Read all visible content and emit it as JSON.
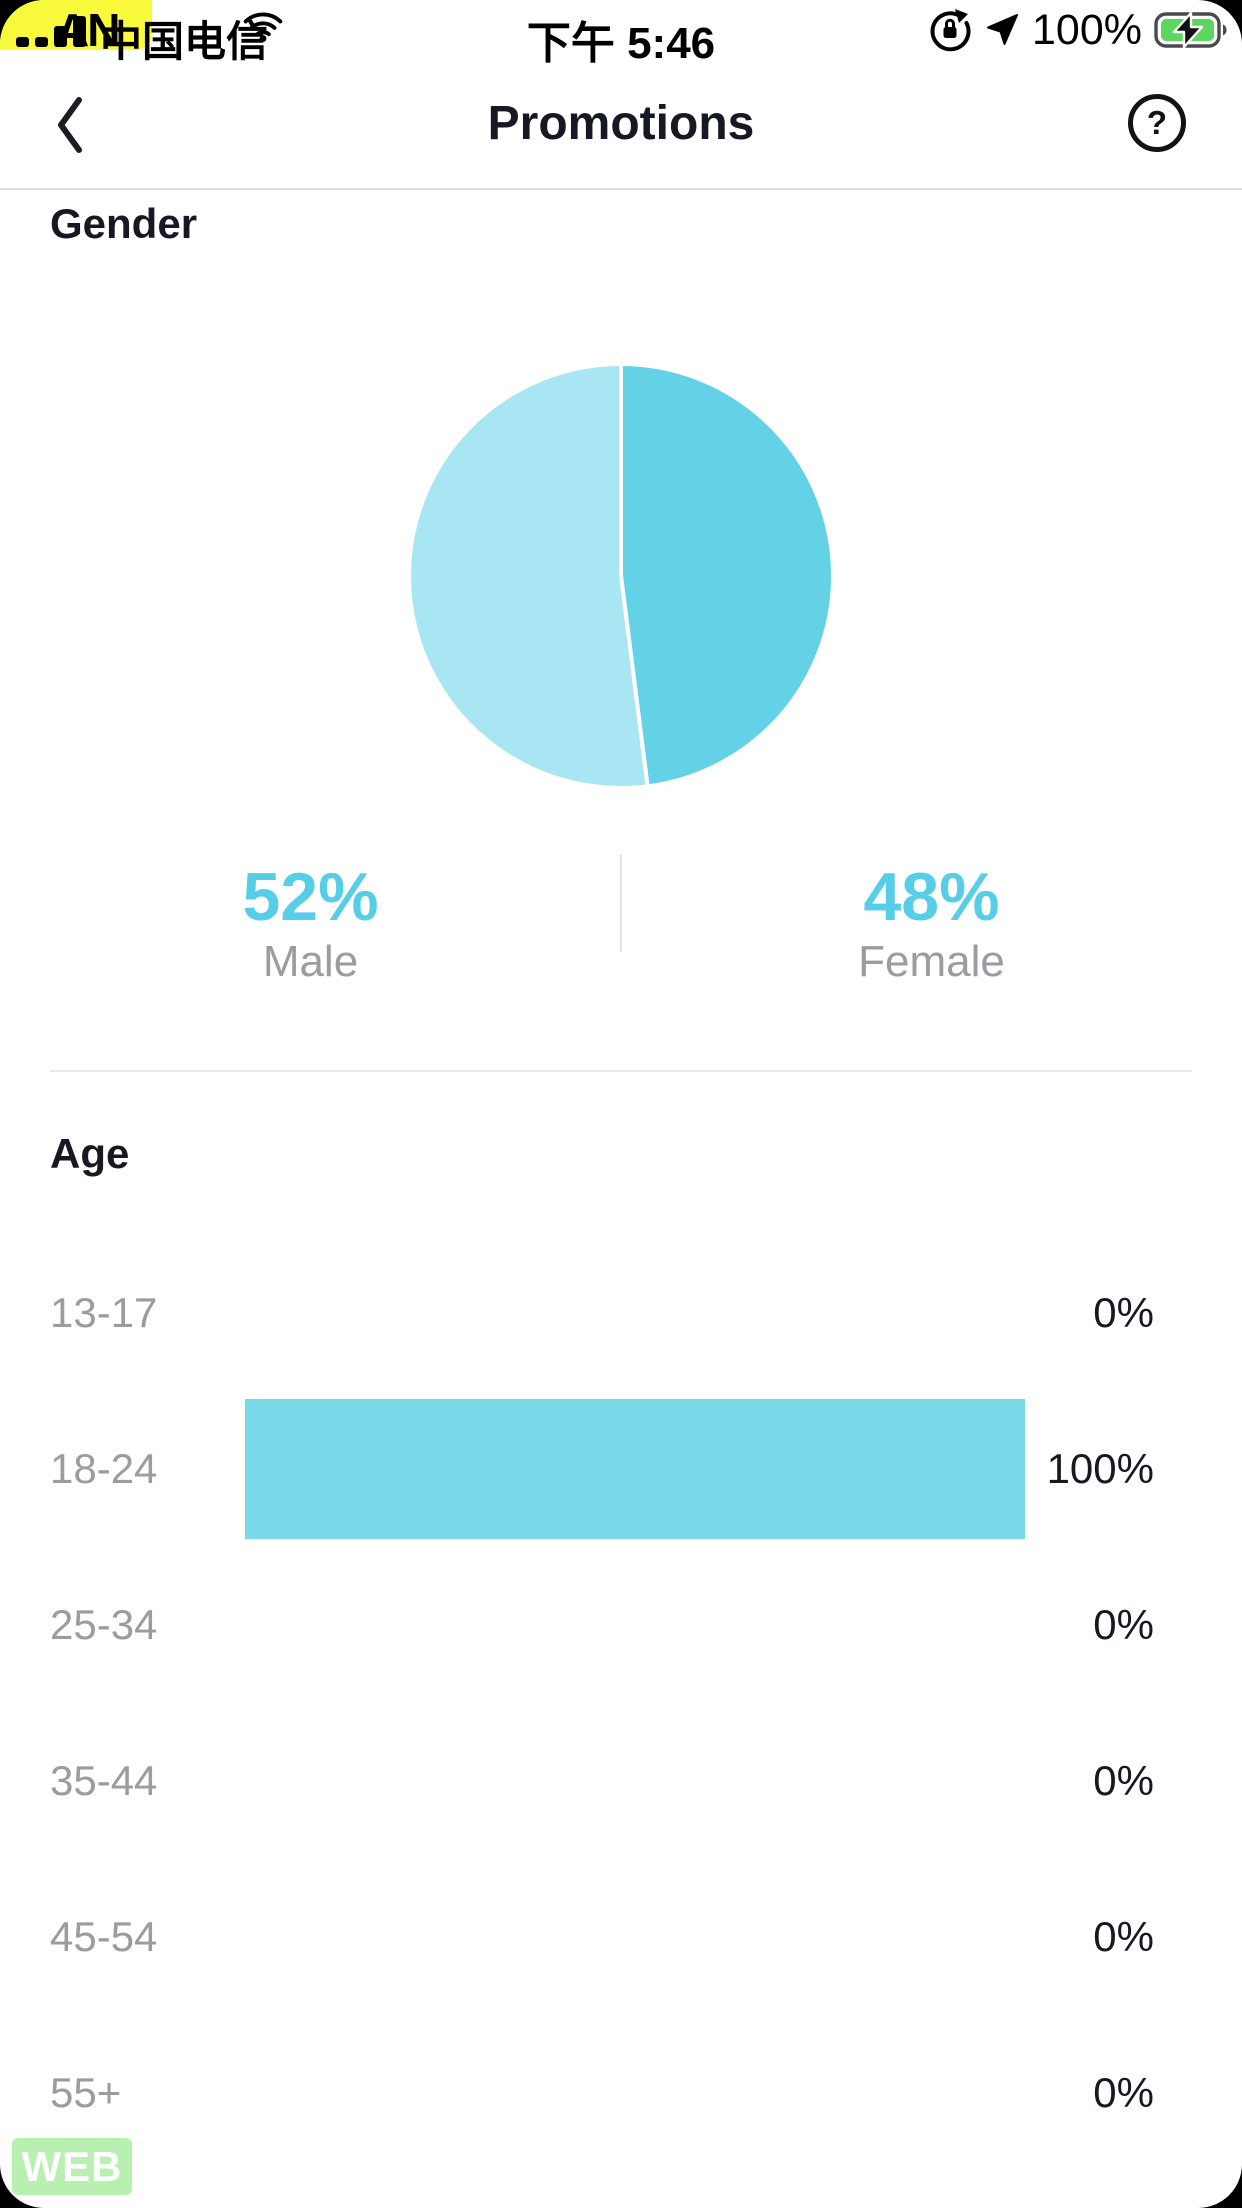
{
  "status_bar": {
    "overlay_text": "AN",
    "carrier": "中国电信",
    "time": "下午 5:46",
    "battery_percent": "100%",
    "icons": {
      "signal": "signal-bars-icon",
      "wifi": "wifi-icon",
      "orientation_lock": "orientation-lock-icon",
      "location": "location-arrow-icon",
      "battery": "battery-charging-icon"
    },
    "colors": {
      "highlight_yellow": "#FAFA3C",
      "battery_green": "#5BD75F"
    }
  },
  "header": {
    "title": "Promotions",
    "back_icon": "chevron-left-icon",
    "help_icon": "question-mark-circle-icon"
  },
  "chart_data": [
    {
      "type": "pie",
      "title": "Gender",
      "start_angle_deg": 0,
      "direction": "clockwise",
      "divider_color": "#FFFFFF",
      "segments": [
        {
          "label": "Female",
          "value": 48,
          "color": "#64D2E6"
        },
        {
          "label": "Male",
          "value": 52,
          "color": "#A7E6F2"
        }
      ],
      "legend": [
        {
          "value_label": "52%",
          "label": "Male"
        },
        {
          "value_label": "48%",
          "label": "Female"
        }
      ],
      "legend_position": "bottom"
    },
    {
      "type": "bar",
      "orientation": "horizontal",
      "title": "Age",
      "categories": [
        "13-17",
        "18-24",
        "25-34",
        "35-44",
        "45-54",
        "55+"
      ],
      "values": [
        0,
        100,
        0,
        0,
        0,
        0
      ],
      "value_labels": [
        "0%",
        "100%",
        "0%",
        "0%",
        "0%",
        "0%"
      ],
      "bar_color": "#78DAE9",
      "xlim": [
        0,
        100
      ],
      "grid": false
    }
  ],
  "colors": {
    "accent_cyan": "#57CEE8",
    "text_dark": "#161823",
    "text_gray": "#9B9BA1",
    "divider": "#E8E8E8"
  },
  "web_badge": {
    "label": "WEB",
    "background": "#B7F0AF"
  }
}
